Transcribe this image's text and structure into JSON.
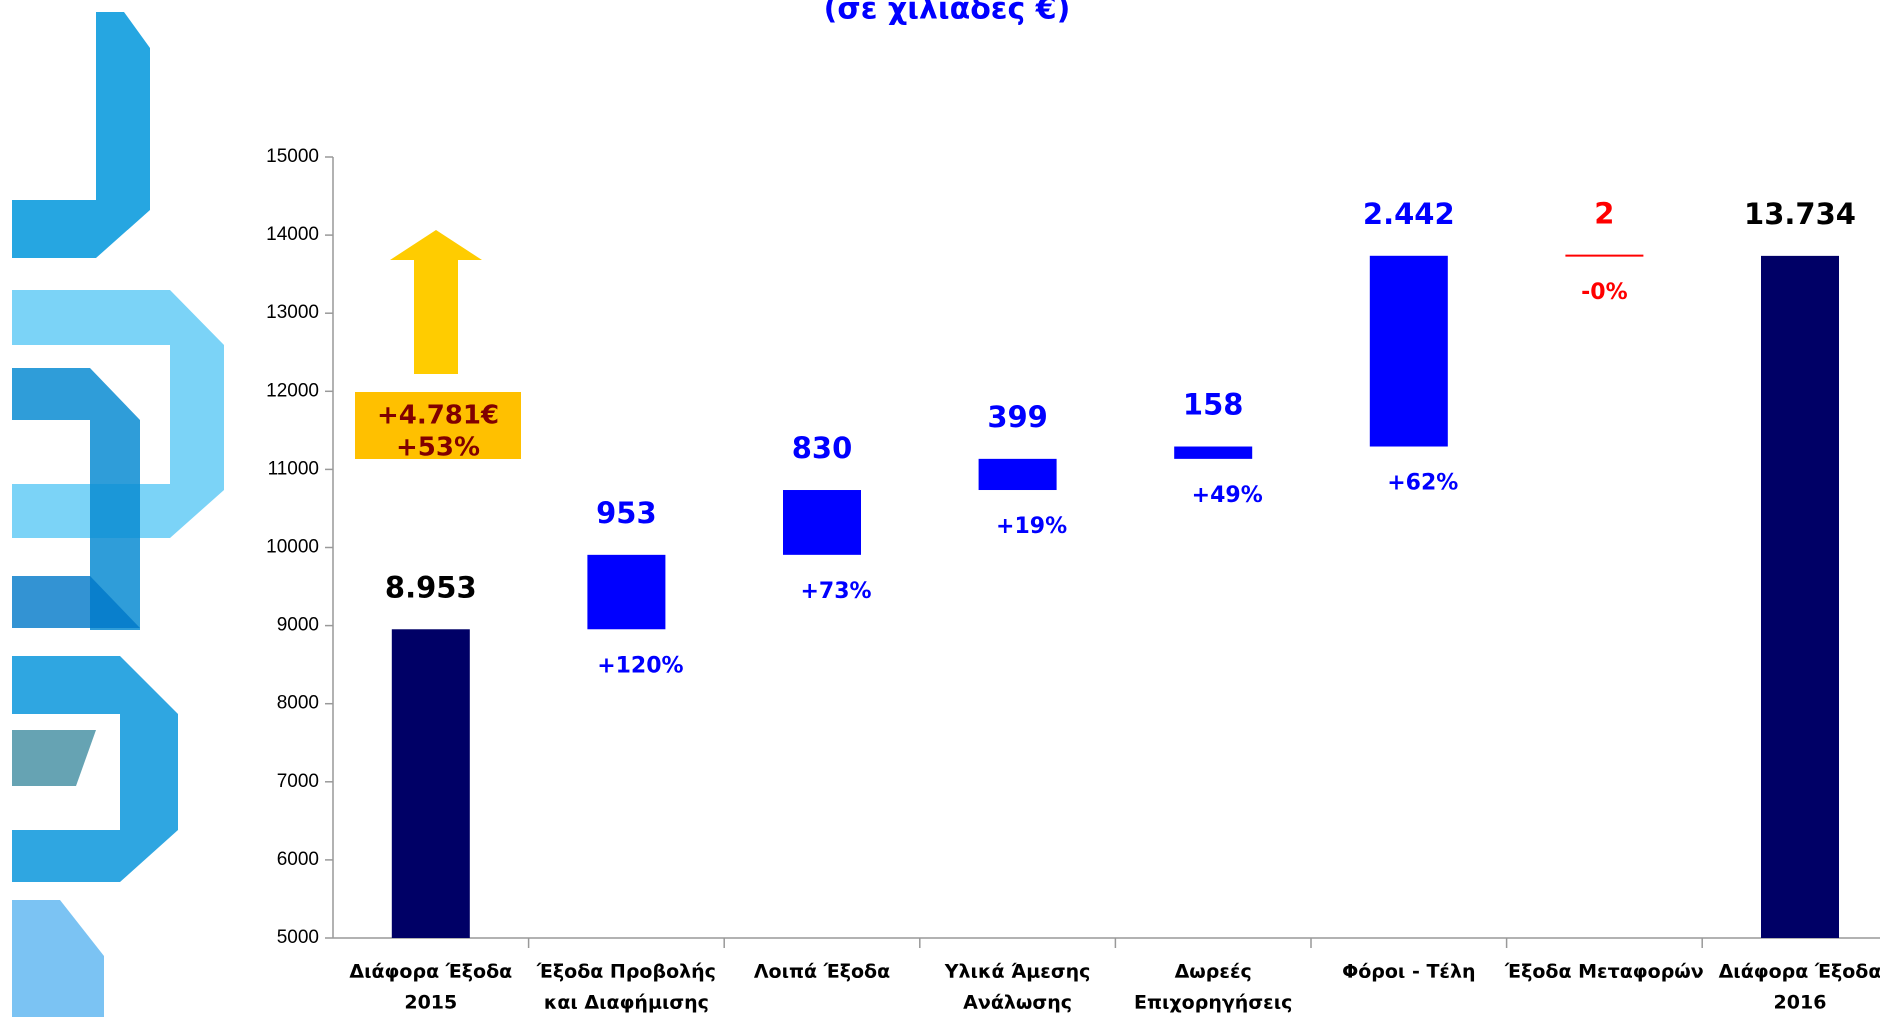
{
  "chart_data": {
    "type": "waterfall",
    "subtitle": "(σε χιλιάδες €)",
    "categories": [
      [
        "Διάφορα Έξοδα",
        "2015"
      ],
      [
        "Έξοδα Προβολής",
        "και Διαφήμισης"
      ],
      [
        "Λοιπά Έξοδα"
      ],
      [
        "Υλικά Άμεσης",
        "Ανάλωσης"
      ],
      [
        "Δωρεές",
        "Επιχορηγήσεις"
      ],
      [
        "Φόροι - Τέλη"
      ],
      [
        "Έξοδα Μεταφορών"
      ],
      [
        "Διάφορα Έξοδα",
        "2016"
      ]
    ],
    "measure": [
      "total",
      "relative",
      "relative",
      "relative",
      "relative",
      "relative",
      "relative",
      "total"
    ],
    "values": [
      8953,
      953,
      830,
      399,
      158,
      2442,
      2,
      13734
    ],
    "value_labels": [
      "8.953",
      "953",
      "830",
      "399",
      "158",
      "2.442",
      "2",
      "13.734"
    ],
    "colors": [
      "#000066",
      "#0000ff",
      "#0000ff",
      "#0000ff",
      "#0000ff",
      "#0000ff",
      "#ff0000",
      "#000066"
    ],
    "change_labels": [
      null,
      "+120%",
      "+73%",
      "+19%",
      "+49%",
      "+62%",
      "-0%",
      null
    ],
    "callout": [
      "+4.781€",
      "+53%"
    ],
    "ylim": [
      5000,
      15000
    ],
    "yticks": [
      5000,
      6000,
      7000,
      8000,
      9000,
      10000,
      11000,
      12000,
      13000,
      14000,
      15000
    ]
  }
}
